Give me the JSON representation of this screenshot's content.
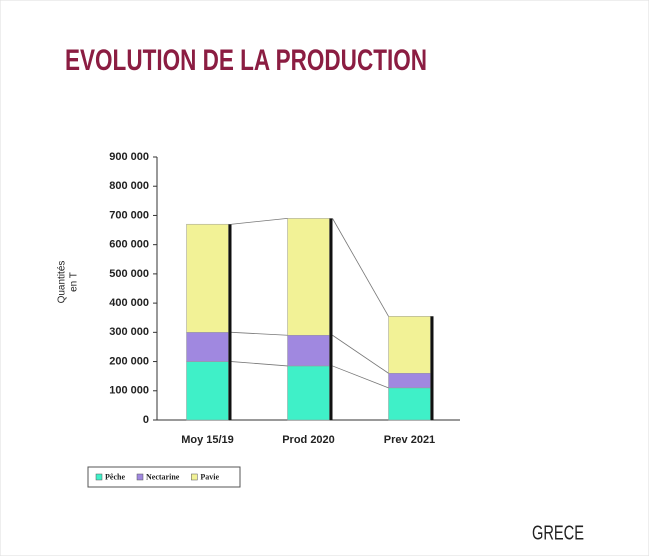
{
  "chart_data": {
    "type": "stacked_bar",
    "title": "EVOLUTION DE LA PRODUCTION",
    "y_label": [
      "Quantités",
      "en T"
    ],
    "categories": [
      "Moy 15/19",
      "Prod 2020",
      "Prev 2021"
    ],
    "series": [
      {
        "name": "Pêche",
        "color": "#3ff0c8",
        "values": [
          200000,
          185000,
          110000
        ]
      },
      {
        "name": "Nectarine",
        "color": "#a088e0",
        "values": [
          100000,
          105000,
          50000
        ]
      },
      {
        "name": "Pavie",
        "color": "#f2f296",
        "values": [
          370000,
          400000,
          195000
        ]
      }
    ],
    "ylim": [
      0,
      900000
    ],
    "yticks": [
      0,
      {
        "value": 100000,
        "label": "100 000"
      },
      {
        "value": 200000,
        "label": "200 000"
      },
      {
        "value": 300000,
        "label": "300 000"
      },
      {
        "value": 400000,
        "label": "400 000"
      },
      {
        "value": 500000,
        "label": "500 000"
      },
      {
        "value": 600000,
        "label": "600 000"
      },
      {
        "value": 700000,
        "label": "700 000"
      },
      {
        "value": 800000,
        "label": "800 000"
      },
      {
        "value": 900000,
        "label": "900 000"
      }
    ],
    "country": "GRECE"
  }
}
